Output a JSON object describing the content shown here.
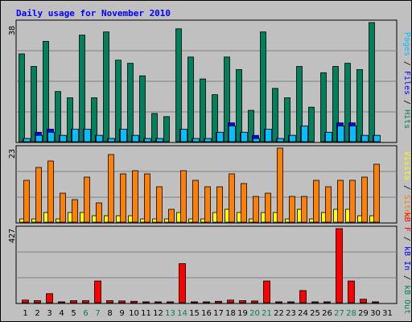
{
  "title": "Daily usage for November 2010",
  "colors": {
    "background": "#c0c0c0",
    "hits": "#00805c",
    "files": "#0000ff",
    "pages": "#00c0ff",
    "visits": "#ffff00",
    "sites": "#ff8000",
    "kb": "#ff0000",
    "weekend_label": "#00805c",
    "weekday_label": "#000000",
    "title_color": "#0000ff"
  },
  "chart_data": [
    {
      "type": "bar",
      "name": "hits-files-pages",
      "x": [
        1,
        2,
        3,
        4,
        5,
        6,
        7,
        8,
        9,
        10,
        11,
        12,
        13,
        14,
        15,
        16,
        17,
        18,
        19,
        20,
        21,
        22,
        23,
        24,
        25,
        26,
        27,
        28,
        29,
        30,
        31
      ],
      "y_max_label": "38",
      "ylim": [
        0,
        38
      ],
      "legend": [
        "Pages",
        "Files",
        "Hits"
      ],
      "series": [
        {
          "name": "Hits",
          "values": [
            28,
            24,
            32,
            16,
            14,
            34,
            14,
            35,
            26,
            25,
            21,
            9,
            8,
            36,
            27,
            20,
            15,
            27,
            23,
            10,
            35,
            17,
            14,
            24,
            11,
            22,
            24,
            25,
            23,
            38,
            0
          ]
        },
        {
          "name": "Files",
          "values": [
            1,
            3,
            4,
            2,
            4,
            4,
            2,
            1,
            4,
            2,
            1,
            1,
            0,
            4,
            1,
            1,
            3,
            6,
            3,
            2,
            4,
            1,
            2,
            5,
            0,
            3,
            6,
            6,
            2,
            2,
            0
          ]
        },
        {
          "name": "Pages",
          "values": [
            1,
            2,
            3,
            2,
            4,
            4,
            2,
            1,
            4,
            2,
            1,
            1,
            0,
            4,
            1,
            1,
            3,
            5,
            3,
            1,
            4,
            1,
            2,
            5,
            0,
            3,
            5,
            5,
            2,
            2,
            0
          ]
        }
      ]
    },
    {
      "type": "bar",
      "name": "visits-sites",
      "y_max_label": "23",
      "ylim": [
        0,
        23
      ],
      "legend": [
        "Visits",
        "Sites"
      ],
      "series": [
        {
          "name": "Sites",
          "values": [
            13,
            17,
            19,
            9,
            7,
            14,
            6,
            21,
            15,
            16,
            15,
            11,
            4,
            16,
            13,
            11,
            11,
            15,
            12,
            8,
            9,
            23,
            8,
            8,
            13,
            11,
            13,
            13,
            14,
            18,
            0
          ]
        },
        {
          "name": "Visits",
          "values": [
            1,
            1,
            3,
            1,
            3,
            3,
            2,
            2,
            2,
            2,
            1,
            1,
            1,
            3,
            1,
            1,
            3,
            4,
            3,
            1,
            3,
            3,
            1,
            4,
            1,
            3,
            4,
            4,
            2,
            2,
            0
          ]
        }
      ]
    },
    {
      "type": "bar",
      "name": "kbin-kbout-kbf",
      "y_max_label": "427",
      "ylim": [
        0,
        427
      ],
      "legend": [
        "kB F",
        "kB In",
        "kB Out"
      ],
      "series": [
        {
          "name": "kB F",
          "values": [
            15,
            12,
            52,
            5,
            12,
            12,
            125,
            12,
            10,
            8,
            5,
            5,
            5,
            225,
            5,
            5,
            8,
            15,
            12,
            10,
            125,
            5,
            5,
            70,
            5,
            5,
            427,
            125,
            20,
            5,
            0
          ]
        }
      ]
    }
  ],
  "x_labels": [
    "1",
    "2",
    "3",
    "4",
    "5",
    "6",
    "7",
    "8",
    "9",
    "10",
    "11",
    "12",
    "13",
    "14",
    "15",
    "16",
    "17",
    "18",
    "19",
    "20",
    "21",
    "22",
    "23",
    "24",
    "25",
    "26",
    "27",
    "28",
    "29",
    "30",
    "31"
  ],
  "weekend_days": [
    6,
    7,
    13,
    14,
    20,
    21,
    27,
    28
  ],
  "legend_text": {
    "top": {
      "pages": "Pages",
      "sep1": " / ",
      "files": "Files",
      "sep2": " / ",
      "hits": "Hits"
    },
    "middle": {
      "visits": "Visits",
      "sep1": " / ",
      "sites": "Sites"
    },
    "bottom": {
      "kbf": "kB F",
      "sep1": " / ",
      "kbin": "kB In",
      "sep2": " / ",
      "kbout": "kB Out"
    }
  }
}
